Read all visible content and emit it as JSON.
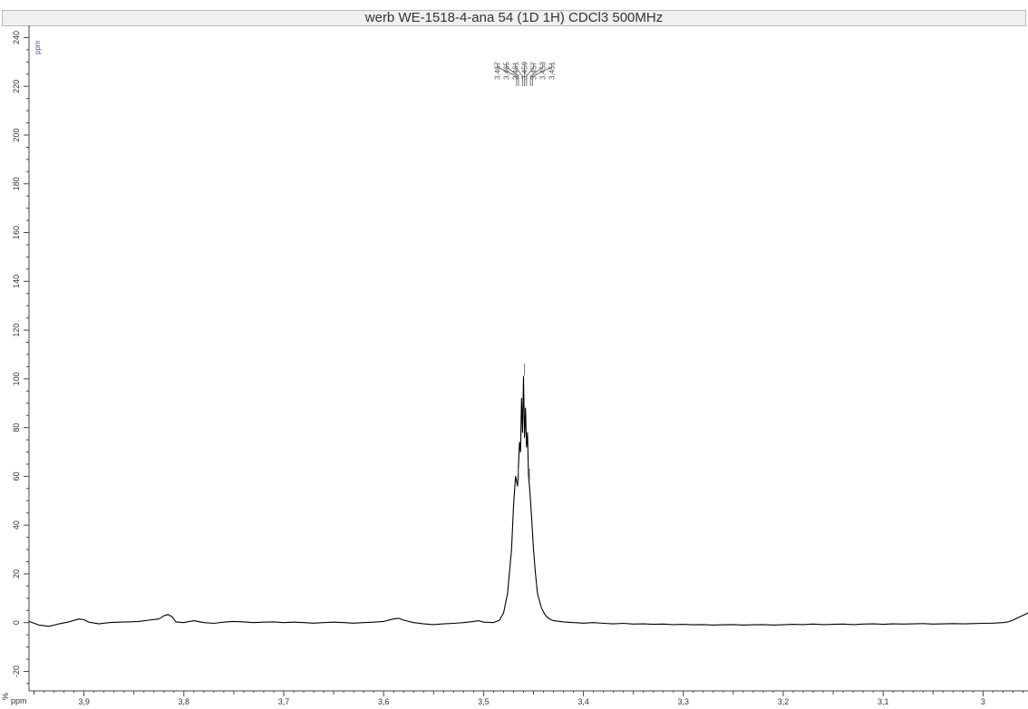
{
  "chart_data": {
    "type": "line",
    "title": "werb WE-1518-4-ana 54 (1D 1H) CDCl3 500MHz",
    "xlabel": "ppm",
    "ylabel": "%",
    "y_unit_label": "ppm",
    "xlim": [
      3.955,
      2.955
    ],
    "ylim": [
      -28,
      245
    ],
    "x_ticks": [
      3.9,
      3.8,
      3.7,
      3.6,
      3.5,
      3.4,
      3.3,
      3.2,
      3.1,
      3.0
    ],
    "x_tick_labels": [
      "3,9",
      "3,8",
      "3,7",
      "3,6",
      "3,5",
      "3,4",
      "3,3",
      "3,2",
      "3,1",
      "3"
    ],
    "y_ticks": [
      -20,
      0,
      20,
      40,
      60,
      80,
      100,
      120,
      140,
      160,
      180,
      200,
      220,
      240
    ],
    "y_tick_labels": [
      "-20",
      "0",
      "20",
      "40",
      "60",
      "80",
      "100",
      "120",
      "140",
      "160",
      "180",
      "200",
      "220",
      "240"
    ],
    "peak_labels": [
      "3,467",
      "3,465",
      "3,461",
      "3,459",
      "3,457",
      "3,453",
      "3,451"
    ],
    "series": [
      {
        "x": [
          3.955,
          3.945,
          3.935,
          3.925,
          3.915,
          3.905,
          3.9,
          3.895,
          3.885,
          3.875,
          3.865,
          3.855,
          3.845,
          3.835,
          3.825,
          3.82,
          3.816,
          3.812,
          3.808,
          3.8,
          3.79,
          3.78,
          3.77,
          3.76,
          3.75,
          3.74,
          3.73,
          3.72,
          3.71,
          3.7,
          3.69,
          3.68,
          3.67,
          3.66,
          3.65,
          3.64,
          3.63,
          3.62,
          3.61,
          3.6,
          3.59,
          3.585,
          3.58,
          3.57,
          3.56,
          3.55,
          3.54,
          3.53,
          3.52,
          3.51,
          3.505,
          3.5,
          3.49,
          3.484,
          3.48,
          3.476,
          3.472,
          3.47,
          3.468,
          3.466,
          3.464,
          3.463,
          3.462,
          3.461,
          3.46,
          3.459,
          3.458,
          3.457,
          3.456,
          3.455,
          3.454,
          3.452,
          3.45,
          3.448,
          3.446,
          3.442,
          3.438,
          3.434,
          3.43,
          3.42,
          3.41,
          3.4,
          3.39,
          3.38,
          3.37,
          3.36,
          3.35,
          3.34,
          3.33,
          3.32,
          3.31,
          3.3,
          3.29,
          3.28,
          3.27,
          3.26,
          3.25,
          3.24,
          3.23,
          3.22,
          3.21,
          3.2,
          3.19,
          3.18,
          3.17,
          3.16,
          3.15,
          3.14,
          3.13,
          3.12,
          3.11,
          3.1,
          3.09,
          3.08,
          3.07,
          3.06,
          3.05,
          3.04,
          3.03,
          3.02,
          3.01,
          3.0,
          2.99,
          2.98,
          2.975,
          2.97,
          2.965,
          2.96,
          2.955
        ],
        "y": [
          0.5,
          -1.0,
          -1.5,
          -0.5,
          0.3,
          1.5,
          1.2,
          0.2,
          -0.5,
          0.0,
          0.2,
          0.3,
          0.5,
          1.0,
          1.5,
          2.8,
          3.3,
          2.5,
          0.3,
          0.0,
          0.8,
          0.0,
          -0.3,
          0.2,
          0.5,
          0.3,
          0.0,
          0.2,
          0.3,
          0.0,
          0.2,
          0.0,
          -0.2,
          0.0,
          0.2,
          0.0,
          -0.2,
          0.0,
          0.2,
          0.5,
          1.5,
          1.8,
          1.0,
          0.0,
          -0.5,
          -0.8,
          -0.5,
          -0.3,
          0.0,
          0.5,
          0.8,
          0.2,
          0.0,
          1.0,
          4.0,
          12.0,
          30.0,
          48.0,
          60.0,
          56.0,
          74.0,
          70.0,
          92.0,
          78.0,
          101.0,
          76.0,
          88.0,
          72.0,
          78.0,
          60.0,
          56.0,
          44.0,
          30.0,
          20.0,
          12.0,
          6.0,
          3.0,
          1.5,
          0.8,
          0.3,
          0.0,
          -0.2,
          0.0,
          -0.3,
          -0.5,
          -0.3,
          -0.6,
          -0.5,
          -0.7,
          -0.6,
          -0.8,
          -0.7,
          -0.9,
          -0.8,
          -1.0,
          -0.9,
          -0.8,
          -1.0,
          -0.9,
          -0.8,
          -1.0,
          -0.9,
          -0.7,
          -0.8,
          -0.6,
          -0.8,
          -0.7,
          -0.6,
          -0.8,
          -0.6,
          -0.5,
          -0.7,
          -0.5,
          -0.6,
          -0.5,
          -0.4,
          -0.6,
          -0.5,
          -0.4,
          -0.5,
          -0.4,
          -0.3,
          -0.2,
          0.0,
          0.3,
          1.0,
          2.0,
          3.0,
          4.0
        ]
      }
    ]
  },
  "colors": {
    "trace": "#000000",
    "axis": "#444444",
    "peak_label_line": "#777777",
    "integral_marker": "#777777"
  }
}
